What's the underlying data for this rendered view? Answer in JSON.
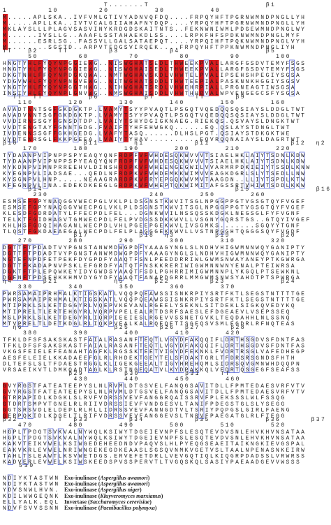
{
  "blocks": [
    {
      "ss": "                    T.......T                       β1",
      "ruler": "1        10        20         30         40",
      "rows": [
        "M.....APLSKA..IVFVMLGTIVYADNVQFDQ....FRPQYHFTPGRNWMNDPNGLLYH",
        "M.....APLLKA..IVTVCALGIIAHAFNYDQP....YRPQYHFTPGRNWMNDPNGLLYH",
        "MKLAYSLLLPLAGVSASVINYKRDGDSKAITNTS..FEKNWNIWMLPDGEWMNDPNGLWY",
        "M......IVSLLG..AAAFLSSTAHAEKDLSS....LRPKFHFSPDKNWMNDPNGLMYF",
        "M......ESRLSG..FASSVLLGALSATAEPQT....YRPQIHFTPQKNWMNDPNGLVYH",
        "M........SGSTD..ARPVTFDGSVIRQEK....FRPQYHFTPPKNWMNDPNGLIYH"
      ]
    },
    {
      "ss": "TT   β2    TT        β3          β4                 β5",
      "ruler": "     50        60        70        80        90       100",
      "rows": [
        "HNGTYHLFYQYNPGGIEWG..NISWGHATSEDLTHWEEKPVALLARGFGSDVTEMYFSGS",
        "HNGTYHLFYQYNPGGIEWG..NISWGHAISEDLTHWEEKPVALLARGFGSDVTEMYFSGS",
        "DKGTNHLFFQYNPDGKQWA..NMTWGHAVSKDLVHWTELPVALIPSEHSHPEGIYSGSA",
        "YDGVWHLFYQYNPNGVEWG..NITWGHATSDDLTHWTEEPIALPASKNNKHGGIYSGSV",
        "YNGTYHLFYQYNPGGTHWG..NIHWGHATSRDLVHWEHRPIALLPRGNEAGTIWSGSA",
        "INSTYHLFYQYNPLGNVWG..NMSWGHATSDDLVHWTHHPVALWPVENGEGCSFYSGSA"
      ]
    },
    {
      "ss": "  TT  TT         β6         β7        TT      β9",
      "ruler": "   110       120       130       140       150       160",
      "rows": [
        "AVADTNNTSGFGKDGKTP.LVAMYTSYYPVAQTLPSGQTVQEDQQSQSIAYSLDDGLTWT",
        "AVADVNNTSGFGKDGKTP.LVAMYTSYYPVAQTLPSGQTVQEDQQSQSIAYSLDDGLTWT",
        "VVDIRNSSGYFGNSDTDP.LVAIYTSHYDGIGKNAEG.RIEKQS.QSVAYSLDNGKTWT",
        "VVDTENGTAYFGNNTGDG.FVAIFTYHFEHWGKQ......EQ.QSLAYSTDNGLTWT",
        "IVDENNSSGFFGKHGEDG.LVAFYTASQ......DLHSLPGT.QSIAYSTDKGKTWE",
        "VYDTENRSGLFKKPGEEA.LVAIYTYHAV..........EQVRQQNAIAYSLDAGRTWT"
      ]
    },
    {
      "ss": "β10             β11       η1          β11                β12  η2  β13",
      "ruler": "    170       180       190       200       210       220",
      "rows": [
        "TYDAANPVIPNPPSPYEAQYQNFRDPFVFWHDESQKWVVVTSIAELHKLAIYTSDNLKDW",
        "TYDAANPVIPNPPSPYEAQYQNFRDPFVFWHDESQKWVVVTSIAELHKLAIYTSDNLKDW",
        "MYKDNPVIMNPRREEHVLDINSHRDPKVFWHEENGEGWILVVARMRPDKIEIYTSSDLKNW",
        "KYEGNPVLIADSAE...QEDLNFRDPKVFWHDEMKKWIMVVEAGKDGRLSLYTSEDLLNW",
        "KYSGNPVLHNP.....NEAAGRARDPKVFRYEPGQKWVMVTAAGDN..LLIYTSPDLKTW",
        "KFEGNPVLINA.EDEKDKEEGLGRDPKVFWHEPTQKWIMITAFGSSRTVHIWTSDDLKKW"
      ]
    },
    {
      "ss": "     β14                                      β15             β16",
      "ruler": "      230                    240       250       260",
      "rows": [
        "ESMSEFGPYNAQGGVWECPGLVKLPLDSGNSTKWVITSGLNPGGPPGTVGSGTQYFVGEF",
        "ESMSEFGPYNAQGGVWECPGLVKLPLDSGNSTKWVITSGLNPGGPPGTVGSGTQYFVGEF",
        "KLESDFGDRDATYLFFECPDLFEL...DGNKWVILNSSQSSKDGKLNEGSGLFYFVGNF",
        "TELKTFGIDHAGVTGMWECPDLFELPVDGSSDKKWVLLVSGNYGQRSTGS..GTQYIVGEF",
        "KHLHSFGDQIHAGANLWECPDLVHLPGEEPGEKWVLIVSGMKS.......SGQYYTGNF",
        "TLQSTFGKDAEAEGALWECPDLFELPLAGGGEKKWVLLVSTNPGGHTQGGGSQYFVGDF"
      ]
    },
    {
      "ss": "              β17          β18  η3        β19          β20",
      "ruler": "   270       280       290       300       310       320",
      "rows": [
        "DGTTFTPDADTVYPGNSTANWMDWGPDFYAAAGYNGLSLNDHVHIGWMNNWQYGANIPTY",
        "DGTTFTPDADTVYPGNSTANWMDWGPDFYAAAGYNGLSLNDHVHIGWMNNWQYGANIPTY",
        "NGTEFNPDFETPEKFDYGPDFYAAQTFSNLPEEDDRRIWLGWMSNWAYANEYPTKGWRGA",
        "DGTTFKADAPNVPSKLEFGRDFYATQTFNSKKRERIWIGWMNNWNYENALPTEIWRSA",
        "DGKTFTPLEPQWKEYIDYGWDSYAAQTFSDLPGHRRIMIGWMNNPLYKGQLPTSEWKNL",
        "DGENFTPDSEHKKHMVDYGYDFYAAQTFANAPDGRRLMMGWMSNWSYAHDTPTSPWRGA"
      ]
    },
    {
      "ss": "η4      β21           η5      β22        β23           β24",
      "ruler": "   330       340       350       360       370",
      "rows": [
        "PWRSAMAIPRHMALKTIGSKATLVQQPQEAWSSISNKRPIYSRTFKTLSEGSTNTTTTGE",
        "PWRSAMAIPRHMALKTIGSKATLVQQPQEAWSSISNKRPIYSRTFKTLSEGSTNTTTTGE",
        "MTIPRKLSLKETDGGYRLVQEPVKEVANLRGEELYSEKNLSITDEKLSIGKQVEDYKQ",
        "MTIPRELTLERTEHGYRLVQRPVPELEALRTDSRFSAESLEFDGEAEVLVSEPSSEQ",
        "MSLPRKLSLKETDEGYRLIQRPIEEIESLRGEVVSSNETGVKLTEQDAHHLNLSSNQ",
        "MTVPRELTLDETKDGLRLIQKPVEALKALRQEQETISGEQSVSMLEGDRLRFNQTEAS"
      ]
    },
    {
      "ss": "  η6                  β25      β26  β27      β28",
      "ruler": "    380       390       400       410       420",
      "rows": [
        "TFKLDFSFSAKSKASTFAIALRASANFTEQTLVGYDFAKQQIFLDRTHSGDVSFDNTFAS",
        "TFKLDFSFSAKSKASTFAIALRASANFTEQTLVGYDFAKQQIFLDRTHSGDVSFDNTFAS",
        "VKGSFEIELEFEANAHTAGFKLRGSSKTEETVIGYDFEKNKLFVDRTRSGLVAFEDHEGP",
        "AESFELEIELKKADAEEFGLRLRHDEKTGEYTELSFDAKTGRLTFDRSRSGNDSFHTH",
        "DLTEFSLSLTFDAESTRGGLKLIGEKGEEALTIGYHREHQMLSIDRSQVGMNWHDQQPN",
        "VRSAEIKVTLDMKQADTAGLKLRSTNGEQATVLKYDPAKKQLVFDRTQSGEGFSEAFSS"
      ]
    },
    {
      "ss": "             β29        β30         β31    TT",
      "ruler": "              430       440       450       460",
      "rows": [
        "GVYRGSTFATEATEEPYSLNLRVMLDTGSVELFANQGSAVITDLLFPMTEDAESVRFVTV",
        "GVYRGSTFATEATEEPYSLNLRVMLDTGSVELFANQGSAVITDLLFPMTEDAESVRFVTV",
        "GTRRAPIDLKDGKLSLRVFVDRSSVEVFANGGRQAISSRVFPLEKSSSLWLFSSQG",
        "GTDRTSMPVTGNELRLRIIVDRSSIEVFVNDGESVLTANIFPDEGSTGLSLYSEGG",
        "GGTSRSVDLELDEPLRLRLLIDRSSVEVFANNGDTVLTSRIYPQPGSLGIRLFAENG",
        "GERPQKIDLKDGELTLRIFVDRSSVEVFANGGEVSLTNRVFPAEGATGLRLFTEGG"
      ]
    },
    {
      "ss": "β32       TT  β33        β34          β35           β36      β37",
      "ruler": "   470       480       490       500       510       520",
      "rows": [
        "HGPLTPDGTSVKVALNYWQLKSIWYTDGEIEVNPFSLESQTEVDVSNLEHVKHVNSATAA",
        "HGPLTPDGTSVKVALNYWQLKSIWYTDGEIEVNPFSLESQTEVDVSNLEHVKHVNSATAA",
        "KAKVTEIKVWELKSIWGEDEHEEDNDVPAQVSLHLPYEQGSEAEITAIKNGKIEVGSPAL",
        "EAKVKRLEVWELNRIWNGEKEGDKEAASLSGSQVNMKVGETVSLTAALNPENASNKEIRW",
        "TAHLTSLEAWTLKSVWETDGS.ERVEFETDRLLVEVGQTIQLKIQGRPDADSSLVRWRSS",
        "KADVERLEVWELKSIWSKEEDSPVSSPERVTLTVGQSKQLSASIYPAEAADGEVVWSSS"
      ]
    },
    {
      "ss": "   530",
      "ruler": "",
      "rows": [
        "NDIYKTASTWN",
        "NDIYKTASTWN",
        "YDVSNWLHVN.",
        "KDILWWGEQNK",
        "ELLYALK.EQL",
        "NDVFSVVSSNN"
      ]
    }
  ],
  "legend": [
    {
      "name": "Exo-inulinase",
      "organism": "Aspergillus awamori"
    },
    {
      "name": "Exo-inulinase",
      "organism": "Aspergillus awamori"
    },
    {
      "name": "Exo-inulinase",
      "organism": "Aspergillus niger"
    },
    {
      "name": "Exo-inulinase",
      "organism": "Kluyveromyces marxianus"
    },
    {
      "name": "Invertase",
      "organism": "Saccharomyces cerevisiae"
    },
    {
      "name": "Exo-inulinase",
      "organism": "Paenibacillus polymyxa"
    }
  ]
}
